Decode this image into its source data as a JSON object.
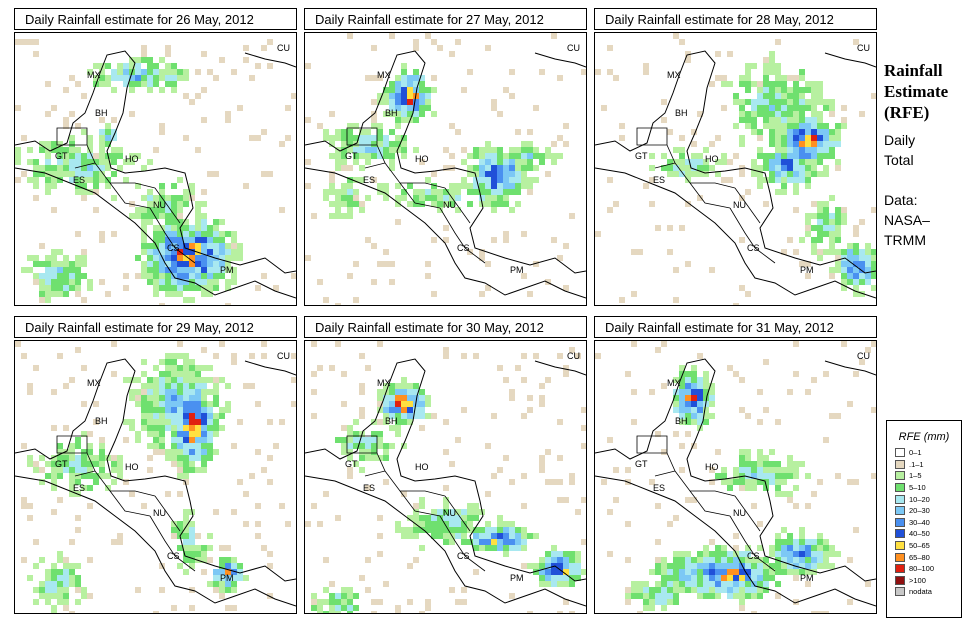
{
  "panels": [
    {
      "title": "Daily Rainfall estimate for  26 May, 2012",
      "day": 26
    },
    {
      "title": "Daily Rainfall estimate for  27 May, 2012",
      "day": 27
    },
    {
      "title": "Daily Rainfall estimate for  28 May, 2012",
      "day": 28
    },
    {
      "title": "Daily Rainfall estimate for  29 May, 2012",
      "day": 29
    },
    {
      "title": "Daily Rainfall estimate for  30 May, 2012",
      "day": 30
    },
    {
      "title": "Daily Rainfall estimate for  31 May, 2012",
      "day": 31
    }
  ],
  "country_labels": [
    "MX",
    "BH",
    "GT",
    "HO",
    "ES",
    "NU",
    "CS",
    "PM",
    "CU"
  ],
  "side": {
    "title_line1": "Rainfall",
    "title_line2": "Estimate",
    "title_line3": "(RFE)",
    "daily_line1": "Daily",
    "daily_line2": "Total",
    "data_line1": "Data:",
    "data_line2": "NASA–",
    "data_line3": "TRMM"
  },
  "legend": {
    "title": "RFE (mm)",
    "items": [
      {
        "label": "0–1",
        "color": "#ffffff"
      },
      {
        "label": ".1–1",
        "color": "#e5d8c0"
      },
      {
        "label": "1–5",
        "color": "#b7f0a0"
      },
      {
        "label": "5–10",
        "color": "#6fe06f"
      },
      {
        "label": "10–20",
        "color": "#a8e8f0"
      },
      {
        "label": "20–30",
        "color": "#7cc8f5"
      },
      {
        "label": "30–40",
        "color": "#4a90f0"
      },
      {
        "label": "40–50",
        "color": "#2050d8"
      },
      {
        "label": "50–65",
        "color": "#ffe040"
      },
      {
        "label": "65–80",
        "color": "#ff9020"
      },
      {
        "label": "80–100",
        "color": "#e02010"
      },
      {
        "label": ">100",
        "color": "#901010"
      },
      {
        "label": "nodata",
        "color": "#c8c8c8"
      }
    ]
  }
}
